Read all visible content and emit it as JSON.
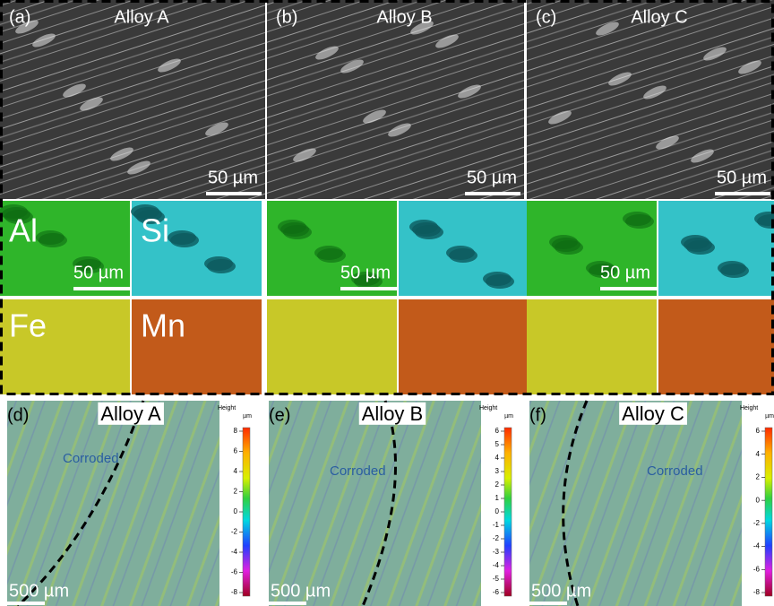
{
  "top": {
    "panels": [
      {
        "label": "(a)",
        "title": "Alloy A",
        "scale": "50 µm"
      },
      {
        "label": "(b)",
        "title": "Alloy B",
        "scale": "50 µm"
      },
      {
        "label": "(c)",
        "title": "Alloy C",
        "scale": "50 µm"
      }
    ]
  },
  "eds": {
    "elements": [
      "Al",
      "Si",
      "Fe",
      "Mn"
    ],
    "scales": [
      "50 µm",
      "50 µm",
      "50 µm"
    ]
  },
  "bottom": {
    "panels": [
      {
        "label": "(d)",
        "title": "Alloy A",
        "region": "Corroded",
        "scale": "500 µm",
        "colorbar": {
          "title": "Height",
          "unit": "µm",
          "ticks": [
            8,
            6,
            4,
            2,
            0,
            -2,
            -4,
            -6,
            -8
          ]
        }
      },
      {
        "label": "(e)",
        "title": "Alloy B",
        "region": "Corroded",
        "scale": "500 µm",
        "colorbar": {
          "title": "Height",
          "unit": "µm",
          "ticks": [
            6,
            5,
            4,
            3,
            2,
            1,
            0,
            -1,
            -2,
            -3,
            -4,
            -5,
            -6
          ]
        }
      },
      {
        "label": "(f)",
        "title": "Alloy C",
        "region": "Corroded",
        "scale": "500 µm",
        "colorbar": {
          "title": "Height",
          "unit": "µm",
          "ticks": [
            6,
            4,
            2,
            0,
            -2,
            -4,
            -6,
            -8
          ]
        }
      }
    ]
  }
}
